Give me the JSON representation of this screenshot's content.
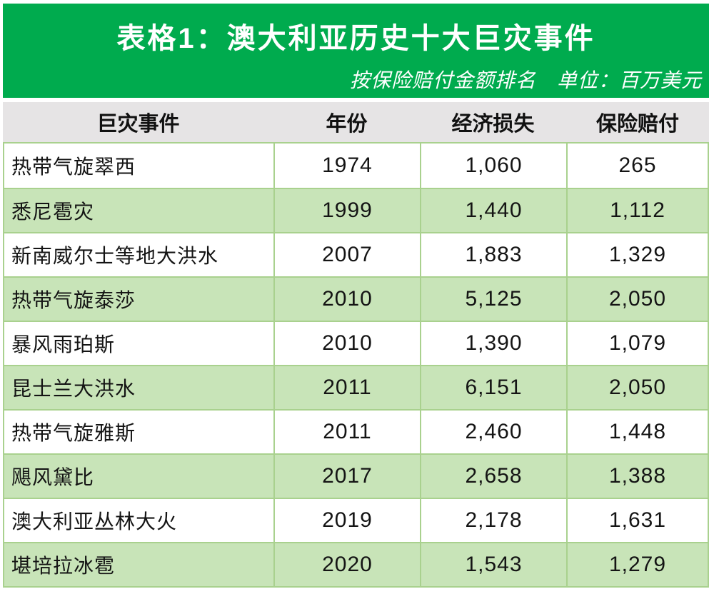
{
  "title": "表格1：澳大利亚历史十大巨灾事件",
  "subtitle": "按保险赔付金额排名　单位：百万美元",
  "colors": {
    "banner_green": "#00ab4e",
    "row_green": "#c8e4b8",
    "grid_green": "#a9d18e",
    "header_gray": "#e6e4e5",
    "text_white": "#ffffff",
    "text_black": "#141414"
  },
  "table": {
    "columns": [
      "巨灾事件",
      "年份",
      "经济损失",
      "保险赔付"
    ],
    "rows": [
      {
        "event": "热带气旋翠西",
        "year": "1974",
        "economic_loss": "1,060",
        "insured_loss": "265"
      },
      {
        "event": "悉尼雹灾",
        "year": "1999",
        "economic_loss": "1,440",
        "insured_loss": "1,112"
      },
      {
        "event": "新南威尔士等地大洪水",
        "year": "2007",
        "economic_loss": "1,883",
        "insured_loss": "1,329"
      },
      {
        "event": "热带气旋泰莎",
        "year": "2010",
        "economic_loss": "5,125",
        "insured_loss": "2,050"
      },
      {
        "event": "暴风雨珀斯",
        "year": "2010",
        "economic_loss": "1,390",
        "insured_loss": "1,079"
      },
      {
        "event": "昆士兰大洪水",
        "year": "2011",
        "economic_loss": "6,151",
        "insured_loss": "2,050"
      },
      {
        "event": "热带气旋雅斯",
        "year": "2011",
        "economic_loss": "2,460",
        "insured_loss": "1,448"
      },
      {
        "event": "飓风黛比",
        "year": "2017",
        "economic_loss": "2,658",
        "insured_loss": "1,388"
      },
      {
        "event": "澳大利亚丛林大火",
        "year": "2019",
        "economic_loss": "2,178",
        "insured_loss": "1,631"
      },
      {
        "event": "堪培拉冰雹",
        "year": "2020",
        "economic_loss": "1,543",
        "insured_loss": "1,279"
      }
    ]
  },
  "chart_data": {
    "type": "table",
    "title": "表格1：澳大利亚历史十大巨灾事件",
    "subtitle": "按保险赔付金额排名 单位：百万美元",
    "unit": "百万美元",
    "columns": [
      "巨灾事件",
      "年份",
      "经济损失",
      "保险赔付"
    ],
    "rows": [
      [
        "热带气旋翠西",
        1974,
        1060,
        265
      ],
      [
        "悉尼雹灾",
        1999,
        1440,
        1112
      ],
      [
        "新南威尔士等地大洪水",
        2007,
        1883,
        1329
      ],
      [
        "热带气旋泰莎",
        2010,
        5125,
        2050
      ],
      [
        "暴风雨珀斯",
        2010,
        1390,
        1079
      ],
      [
        "昆士兰大洪水",
        2011,
        6151,
        2050
      ],
      [
        "热带气旋雅斯",
        2011,
        2460,
        1448
      ],
      [
        "飓风黛比",
        2017,
        2658,
        1388
      ],
      [
        "澳大利亚丛林大火",
        2019,
        2178,
        1631
      ],
      [
        "堪培拉冰雹",
        2020,
        1543,
        1279
      ]
    ]
  }
}
